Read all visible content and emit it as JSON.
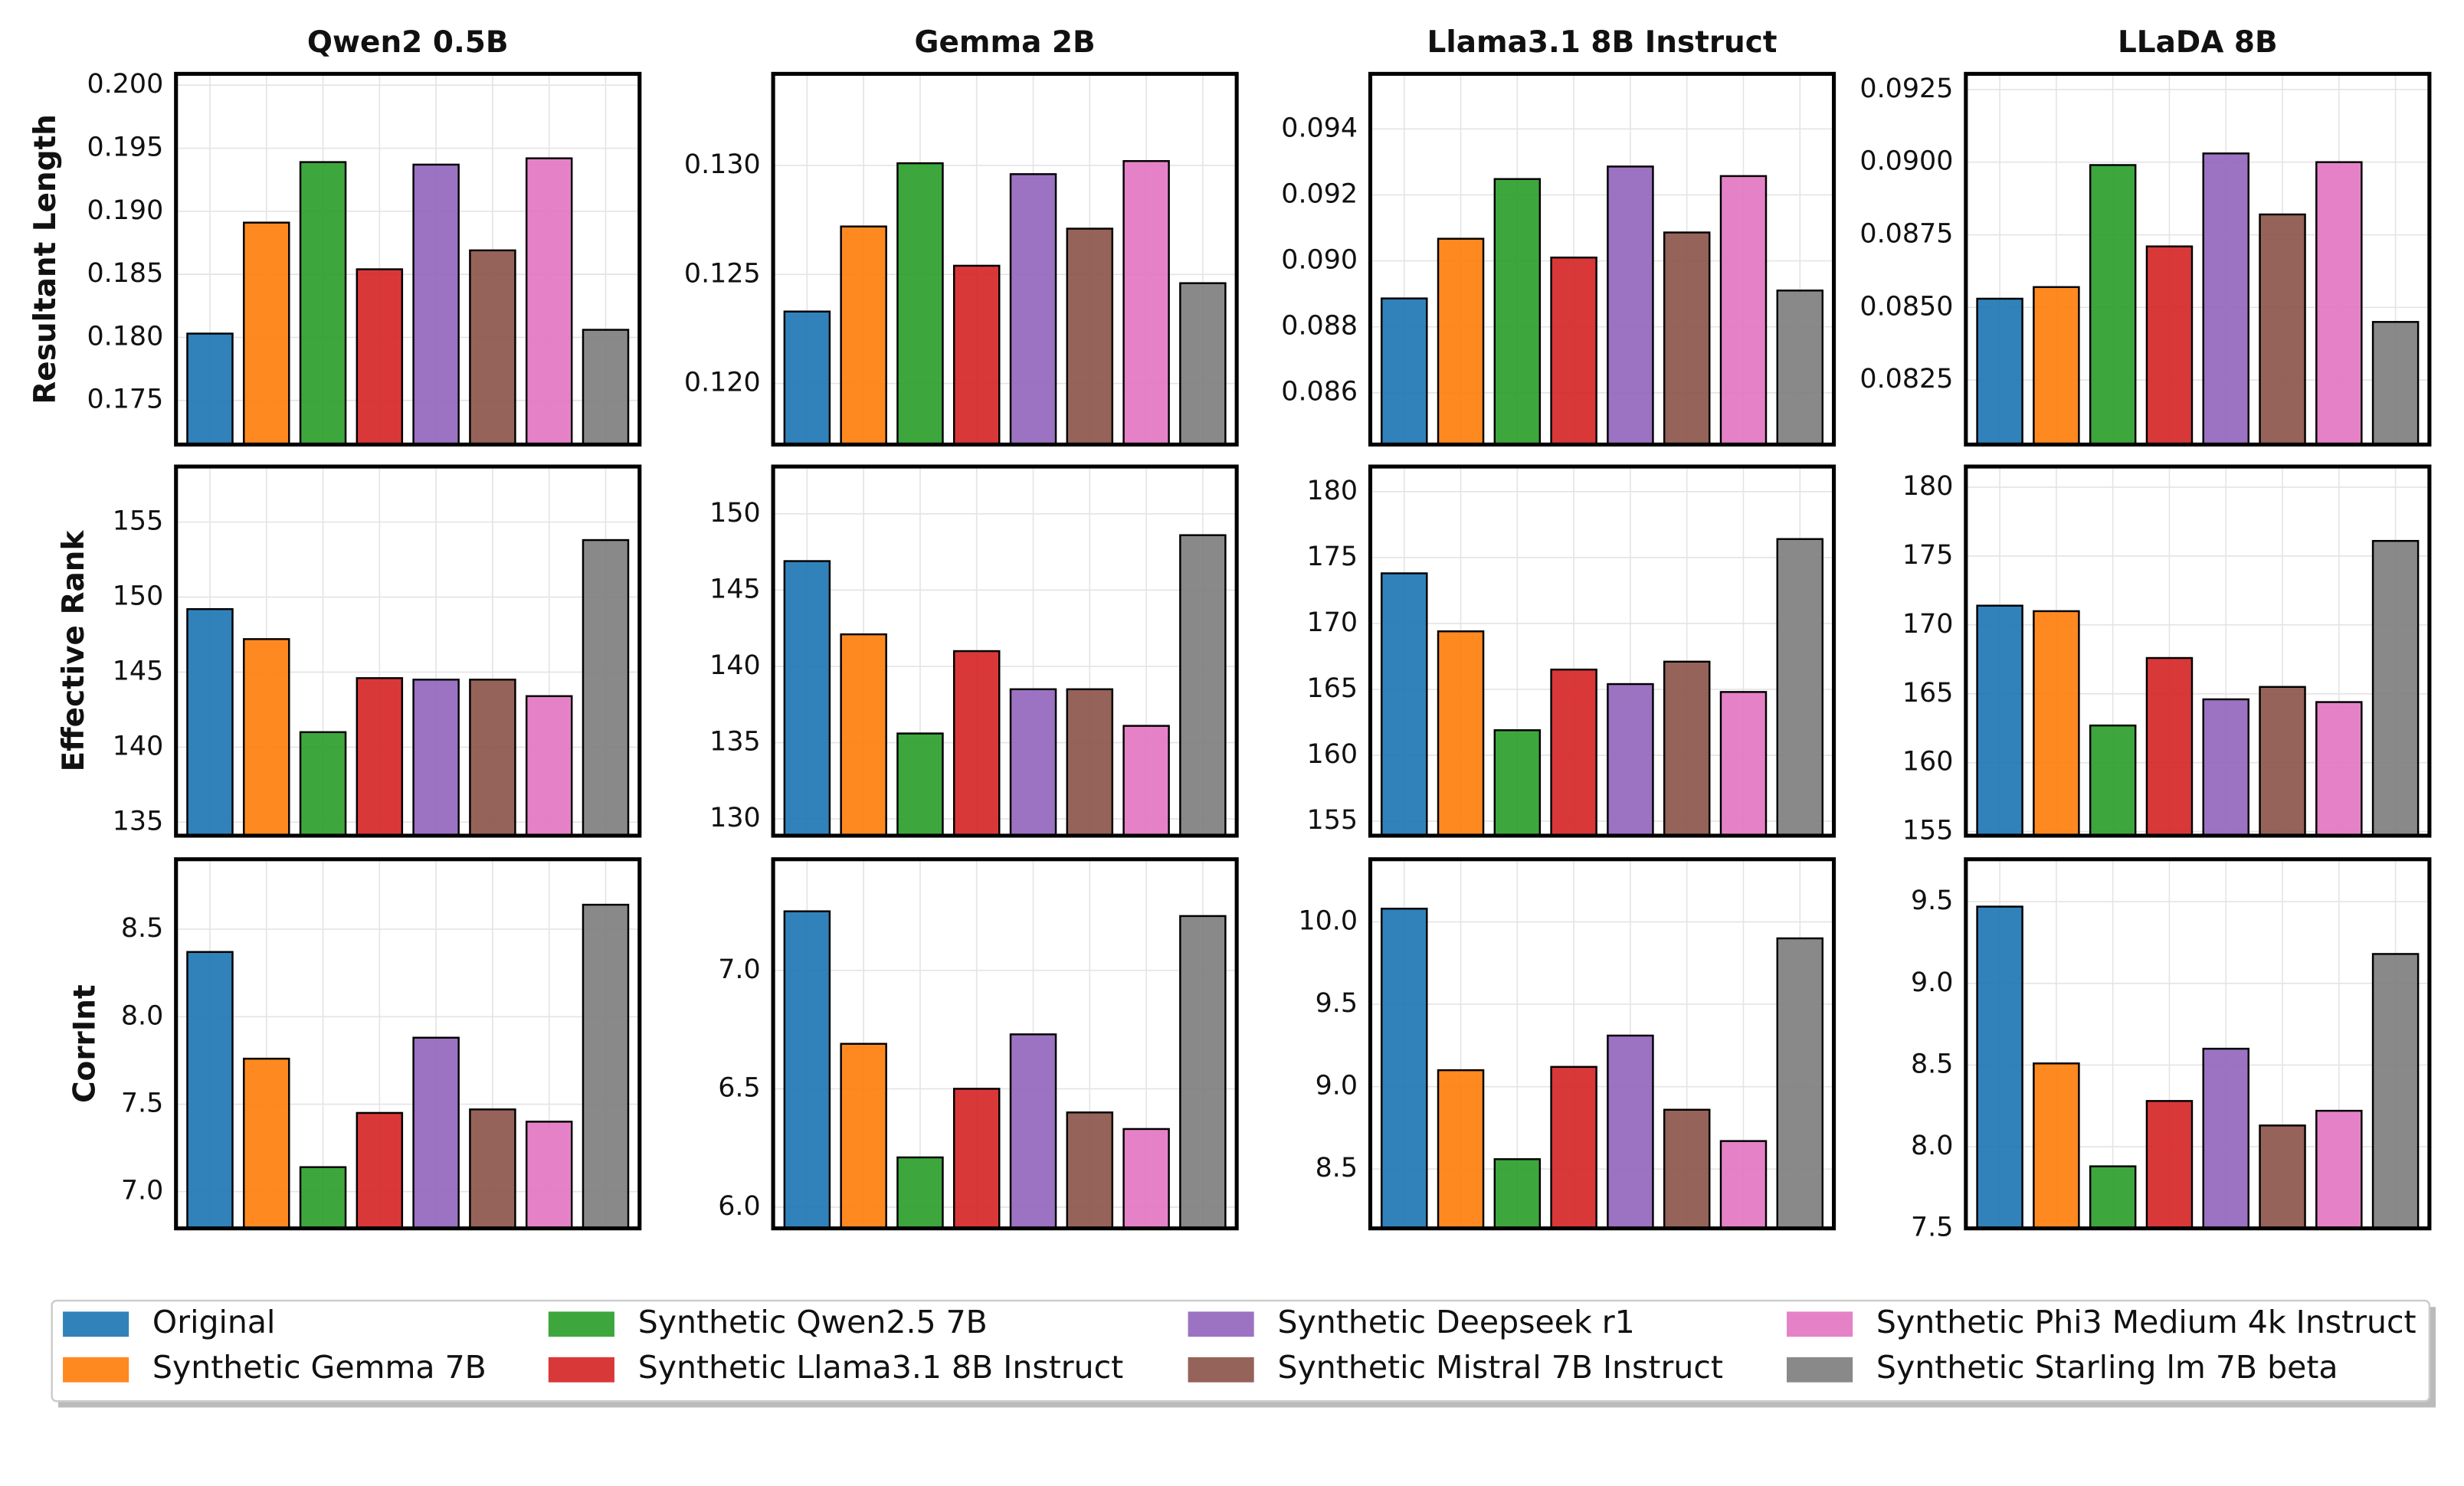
{
  "chart_data": [
    {
      "type": "bar",
      "title": "Qwen2 0.5B",
      "ylabel": "Resultant Length",
      "values": [
        0.1803,
        0.1891,
        0.1939,
        0.1854,
        0.1937,
        0.1869,
        0.1942,
        0.1806
      ],
      "ylim": [
        0.1715,
        0.2009
      ],
      "yticks": [
        0.175,
        {
          "value": 0.18,
          "label": "0.180"
        },
        0.185,
        {
          "value": 0.19,
          "label": "0.190"
        },
        0.195,
        {
          "value": 0.2,
          "label": "0.200"
        }
      ],
      "grid": true
    },
    {
      "type": "bar",
      "title": "Gemma 2B",
      "values": [
        0.1233,
        0.1272,
        0.1301,
        0.1254,
        0.1296,
        0.1271,
        0.1302,
        0.1246
      ],
      "ylim": [
        0.1172,
        0.1342
      ],
      "yticks": [
        {
          "value": 0.12,
          "label": "0.120"
        },
        0.125,
        {
          "value": 0.13,
          "label": "0.130"
        }
      ],
      "grid": true
    },
    {
      "type": "bar",
      "title": "Llama3.1 8B Instruct",
      "values": [
        0.08886,
        0.09067,
        0.09248,
        0.0901,
        0.09286,
        0.09086,
        0.09257,
        0.0891
      ],
      "ylim": [
        0.08443,
        0.09567
      ],
      "yticks": [
        0.086,
        0.088,
        {
          "value": 0.09,
          "label": "0.090"
        },
        0.092,
        0.094
      ],
      "grid": true
    },
    {
      "type": "bar",
      "title": "LLaDA 8B",
      "values": [
        0.0853,
        0.0857,
        0.0899,
        0.0871,
        0.0903,
        0.0882,
        0.09,
        0.0845
      ],
      "ylim": [
        0.08028,
        0.09304
      ],
      "yticks": [
        0.0825,
        {
          "value": 0.085,
          "label": "0.0850"
        },
        0.0875,
        {
          "value": 0.09,
          "label": "0.0900"
        },
        0.0925
      ],
      "grid": true
    },
    {
      "type": "bar",
      "ylabel": "Effective Rank",
      "values": [
        149.2,
        147.2,
        141.0,
        144.6,
        144.5,
        144.5,
        143.4,
        153.8
      ],
      "ylim": [
        134.1,
        158.7
      ],
      "yticks": [
        135,
        140,
        145,
        150,
        155
      ],
      "grid": true
    },
    {
      "type": "bar",
      "values": [
        146.9,
        142.1,
        135.6,
        141.0,
        138.5,
        138.5,
        136.1,
        148.6
      ],
      "ylim": [
        128.9,
        153.1
      ],
      "yticks": [
        130,
        135,
        140,
        145,
        150
      ],
      "grid": true
    },
    {
      "type": "bar",
      "values": [
        173.8,
        169.4,
        161.9,
        166.5,
        165.4,
        167.1,
        164.8,
        176.4
      ],
      "ylim": [
        153.9,
        181.9
      ],
      "yticks": [
        155,
        160,
        165,
        170,
        175,
        180
      ],
      "grid": true
    },
    {
      "type": "bar",
      "values": [
        171.4,
        171.0,
        162.7,
        167.6,
        164.6,
        165.5,
        164.4,
        176.1
      ],
      "ylim": [
        154.7,
        181.5
      ],
      "yticks": [
        155,
        160,
        165,
        170,
        175,
        180
      ],
      "grid": true
    },
    {
      "type": "bar",
      "ylabel": "CorrInt",
      "values": [
        8.37,
        7.76,
        7.14,
        7.45,
        7.88,
        7.47,
        7.4,
        8.64
      ],
      "ylim": [
        6.79,
        8.9
      ],
      "yticks": [
        {
          "value": 7,
          "label": "7.0"
        },
        7.5,
        {
          "value": 8,
          "label": "8.0"
        },
        8.5
      ],
      "grid": true
    },
    {
      "type": "bar",
      "values": [
        7.25,
        6.69,
        6.21,
        6.5,
        6.73,
        6.4,
        6.33,
        7.23
      ],
      "ylim": [
        5.91,
        7.47
      ],
      "yticks": [
        {
          "value": 6,
          "label": "6.0"
        },
        6.5,
        {
          "value": 7,
          "label": "7.0"
        }
      ],
      "grid": true
    },
    {
      "type": "bar",
      "values": [
        10.08,
        9.1,
        8.56,
        9.12,
        9.31,
        8.86,
        8.67,
        9.9
      ],
      "ylim": [
        8.14,
        10.38
      ],
      "yticks": [
        8.5,
        {
          "value": 9,
          "label": "9.0"
        },
        9.5,
        {
          "value": 10,
          "label": "10.0"
        }
      ],
      "grid": true
    },
    {
      "type": "bar",
      "values": [
        9.47,
        8.51,
        7.88,
        8.28,
        8.6,
        8.13,
        8.22,
        9.18
      ],
      "ylim": [
        7.5,
        9.76
      ],
      "yticks": [
        7.5,
        {
          "value": 8,
          "label": "8.0"
        },
        8.5,
        {
          "value": 9,
          "label": "9.0"
        },
        9.5
      ],
      "grid": true
    }
  ],
  "legend": [
    {
      "name": "Original",
      "color": "#1f77b4"
    },
    {
      "name": "Synthetic Gemma 7B",
      "color": "#ff7f0e"
    },
    {
      "name": "Synthetic Qwen2.5 7B",
      "color": "#2ca02c"
    },
    {
      "name": "Synthetic Llama3.1 8B Instruct",
      "color": "#d62728"
    },
    {
      "name": "Synthetic Deepseek r1",
      "color": "#9467bd"
    },
    {
      "name": "Synthetic Mistral 7B Instruct",
      "color": "#8c564b"
    },
    {
      "name": "Synthetic Phi3 Medium 4k Instruct",
      "color": "#e377c2"
    },
    {
      "name": "Synthetic Starling lm 7B beta",
      "color": "#7f7f7f"
    }
  ]
}
